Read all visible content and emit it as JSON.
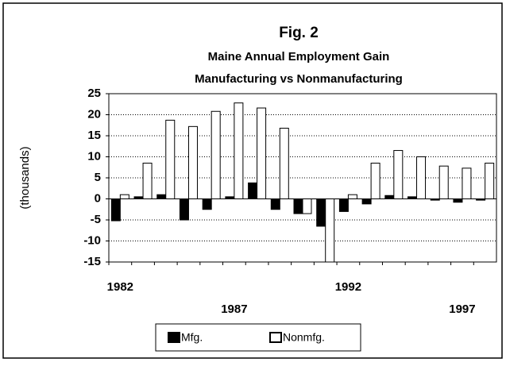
{
  "chart_data": {
    "type": "bar",
    "title": "Fig. 2",
    "subtitle": [
      "Maine Annual Employment Gain",
      "Manufacturing vs Nonmanufacturing"
    ],
    "y_label": "(thousands)",
    "categories": [
      "1982",
      null,
      null,
      null,
      null,
      "1987",
      null,
      null,
      null,
      null,
      "1992",
      null,
      null,
      null,
      null,
      "1997",
      null
    ],
    "series": [
      {
        "name": "Mfg.",
        "color": "#000000",
        "values": [
          -5.2,
          0.5,
          1,
          -5,
          -2.5,
          0.5,
          3.8,
          -2.5,
          -3.5,
          -6.5,
          -3,
          -1.2,
          0.8,
          0.5,
          -0.3,
          -0.8,
          -0.3
        ]
      },
      {
        "name": "Nonmfg.",
        "color": "#ffffff",
        "values": [
          1,
          8.5,
          18.7,
          17.2,
          20.8,
          22.8,
          21.6,
          16.8,
          -3.5,
          -15,
          1,
          8.5,
          11.5,
          10,
          7.8,
          7.3,
          8.5
        ]
      }
    ],
    "ylim": [
      -15,
      25
    ],
    "yticks": [
      -15,
      -10,
      -5,
      0,
      5,
      10,
      15,
      20,
      25
    ],
    "grid": true,
    "legend": "bottom"
  }
}
